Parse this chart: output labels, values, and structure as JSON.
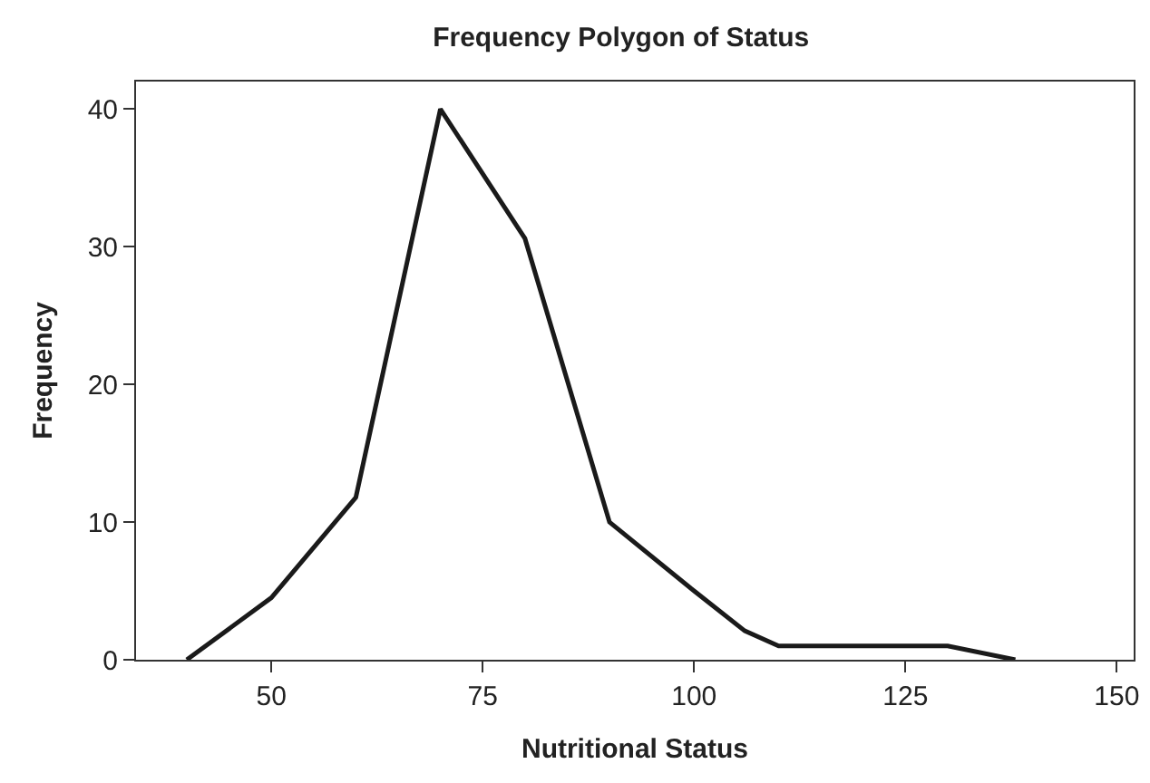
{
  "chart_data": {
    "type": "line",
    "title": "Frequency Polygon of Status",
    "xlabel": "Nutritional Status",
    "ylabel": "Frequency",
    "x": [
      40,
      50,
      60,
      70,
      80,
      90,
      100,
      106,
      110,
      130,
      138
    ],
    "series": [
      {
        "color": "#1a1a1a",
        "values": [
          0,
          4.5,
          11.8,
          40,
          30.6,
          10,
          5,
          2.1,
          1,
          1,
          0
        ]
      }
    ],
    "xlim": [
      34,
      152
    ],
    "xticks": [
      50,
      75,
      100,
      125,
      150
    ],
    "ylim": [
      0,
      42
    ],
    "yticks": [
      0,
      10,
      20,
      30,
      40
    ],
    "legend": false,
    "marker": "none",
    "line_style": "solid"
  }
}
